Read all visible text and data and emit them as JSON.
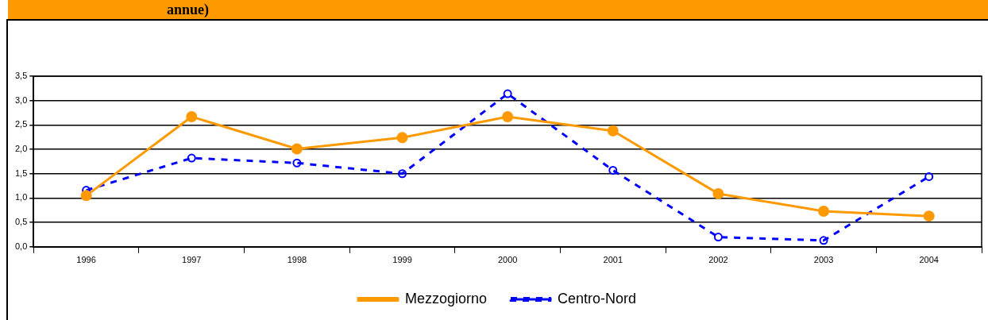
{
  "chart_data": {
    "type": "line",
    "title": "annue)",
    "categories": [
      "1996",
      "1997",
      "1998",
      "1999",
      "2000",
      "2001",
      "2002",
      "2003",
      "2004"
    ],
    "series": [
      {
        "name": "Mezzogiorno",
        "color": "#ff9900",
        "values": [
          1.05,
          2.67,
          2.01,
          2.24,
          2.67,
          2.38,
          1.09,
          0.73,
          0.63
        ],
        "marker": "circle",
        "line_style": "solid"
      },
      {
        "name": "Centro-Nord",
        "color": "#0000ff",
        "values": [
          1.16,
          1.82,
          1.72,
          1.5,
          3.14,
          1.57,
          0.2,
          0.13,
          1.44
        ],
        "marker": "circle",
        "line_style": "dashed"
      }
    ],
    "ylim": [
      0,
      3.5
    ],
    "yticks": [
      {
        "value": 0,
        "label": "0,0"
      },
      {
        "value": 0.5,
        "label": "0,5"
      },
      {
        "value": 1,
        "label": "1,0"
      },
      {
        "value": 1.5,
        "label": "1,5"
      },
      {
        "value": 2,
        "label": "2,0"
      },
      {
        "value": 2.5,
        "label": "2,5"
      },
      {
        "value": 3,
        "label": "3,0"
      },
      {
        "value": 3.5,
        "label": "3,5"
      }
    ],
    "grid": "y",
    "legend": "bottom"
  }
}
